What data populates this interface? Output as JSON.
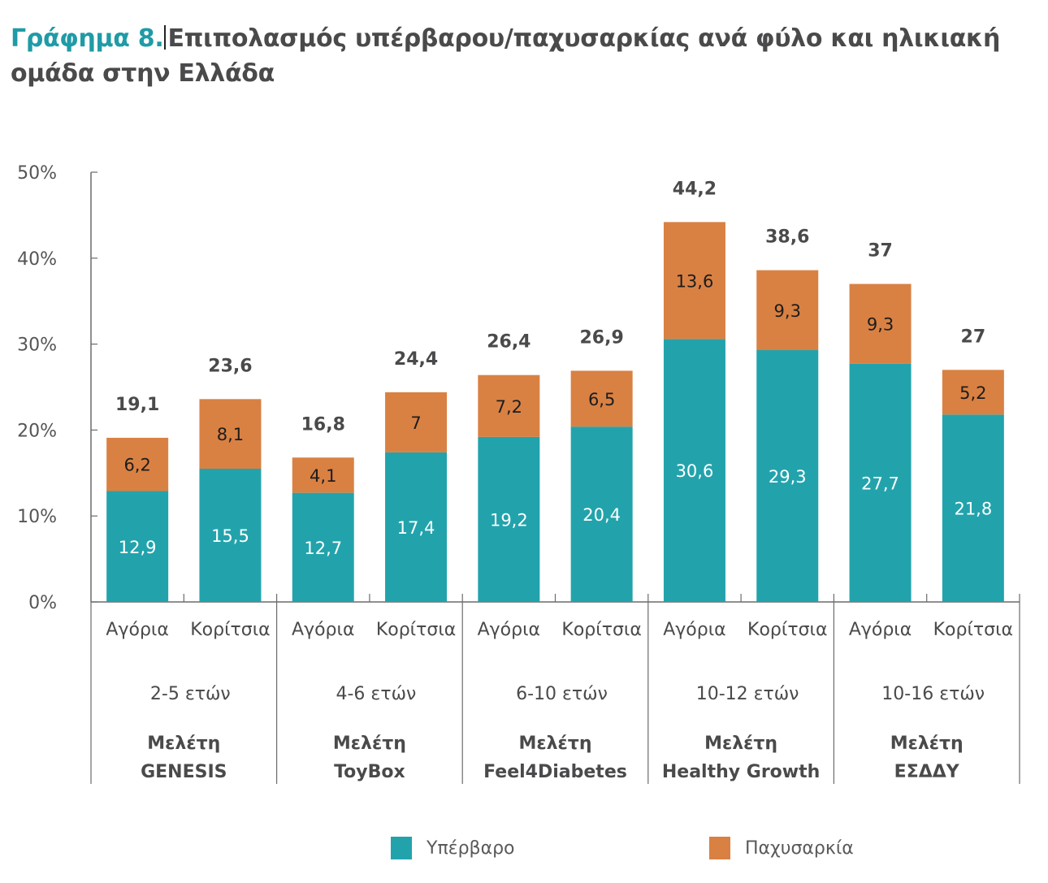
{
  "title": {
    "prefix": "Γράφημα 8.",
    "text": "Επιπολασμός υπέρβαρου/παχυσαρκίας ανά φύλο και ηλικιακή ομάδα στην Ελλάδα"
  },
  "colors": {
    "overweight": "#22a3ac",
    "obesity": "#d98143",
    "title_accent": "#1f9ba6",
    "axis": "#6b6b6b"
  },
  "chart_data": {
    "type": "bar",
    "stacked": true,
    "title": "Γράφημα 8. Επιπολασμός υπέρβαρου/παχυσαρκίας ανά φύλο και ηλικιακή ομάδα στην Ελλάδα",
    "xlabel": "",
    "ylabel": "",
    "ylim": [
      0,
      50
    ],
    "yticks": [
      0,
      10,
      20,
      30,
      40,
      50
    ],
    "ytick_labels": [
      "0%",
      "10%",
      "20%",
      "30%",
      "40%",
      "50%"
    ],
    "grid": false,
    "legend_position": "bottom",
    "categories": [
      "Αγόρια",
      "Κορίτσια",
      "Αγόρια",
      "Κορίτσια",
      "Αγόρια",
      "Κορίτσια",
      "Αγόρια",
      "Κορίτσια",
      "Αγόρια",
      "Κορίτσια"
    ],
    "groups": [
      {
        "age": "2-5 ετών",
        "study_line1": "Μελέτη",
        "study_line2": "GENESIS"
      },
      {
        "age": "4-6 ετών",
        "study_line1": "Μελέτη",
        "study_line2": "ToyBox"
      },
      {
        "age": "6-10 ετών",
        "study_line1": "Μελέτη",
        "study_line2": "Feel4Diabetes"
      },
      {
        "age": "10-12 ετών",
        "study_line1": "Μελέτη",
        "study_line2": "Healthy Growth"
      },
      {
        "age": "10-16 ετών",
        "study_line1": "Μελέτη",
        "study_line2": "ΕΣΔΔΥ"
      }
    ],
    "series": [
      {
        "name": "Υπέρβαρο",
        "values": [
          12.9,
          15.5,
          12.7,
          17.4,
          19.2,
          20.4,
          30.6,
          29.3,
          27.7,
          21.8
        ],
        "labels": [
          "12,9",
          "15,5",
          "12,7",
          "17,4",
          "19,2",
          "20,4",
          "30,6",
          "29,3",
          "27,7",
          "21,8"
        ]
      },
      {
        "name": "Παχυσαρκία",
        "values": [
          6.2,
          8.1,
          4.1,
          7.0,
          7.2,
          6.5,
          13.6,
          9.3,
          9.3,
          5.2
        ],
        "labels": [
          "6,2",
          "8,1",
          "4,1",
          "7",
          "7,2",
          "6,5",
          "13,6",
          "9,3",
          "9,3",
          "5,2"
        ]
      }
    ],
    "totals": [
      19.1,
      23.6,
      16.8,
      24.4,
      26.4,
      26.9,
      44.2,
      38.6,
      37,
      27
    ],
    "total_labels": [
      "19,1",
      "23,6",
      "16,8",
      "24,4",
      "26,4",
      "26,9",
      "44,2",
      "38,6",
      "37",
      "27"
    ]
  },
  "legend": {
    "items": [
      {
        "label": "Υπέρβαρο"
      },
      {
        "label": "Παχυσαρκία"
      }
    ]
  }
}
